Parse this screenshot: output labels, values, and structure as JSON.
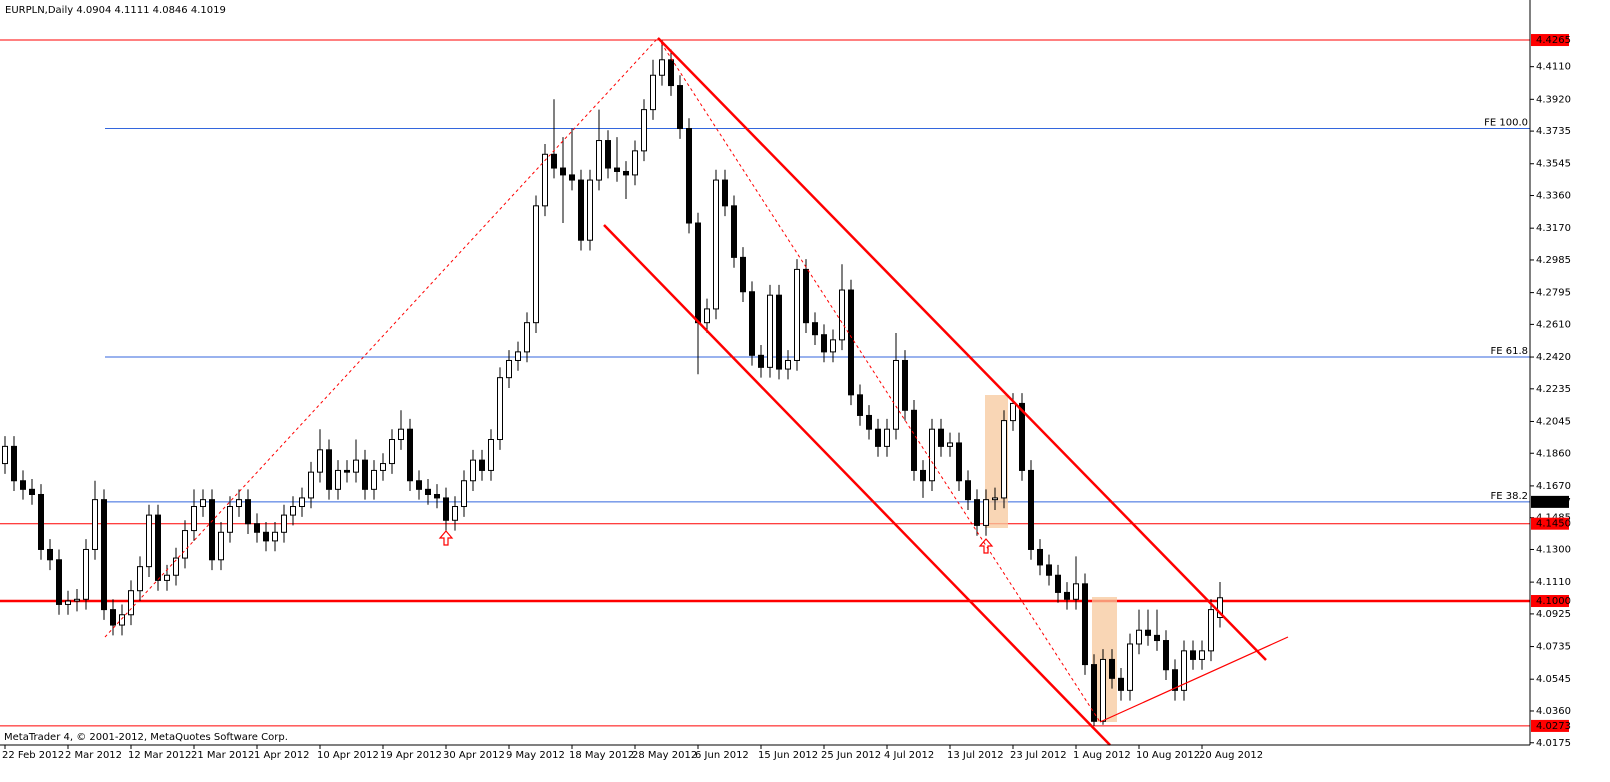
{
  "chart_data": {
    "type": "candlestick",
    "title": "EURPLN,Daily  4.0904 4.1111 4.0846 4.1019",
    "footer": "MetaTrader 4, © 2001-2012, MetaQuotes Software Corp.",
    "bull_color": "#ffffff",
    "bear_color": "#000000",
    "ylim": [
      4.0162,
      4.4498
    ],
    "yticks": [
      {
        "value": 4.411,
        "label": "4.4110"
      },
      {
        "value": 4.392,
        "label": "4.3920"
      },
      4.3735,
      4.3545,
      {
        "value": 4.336,
        "label": "4.3360"
      },
      {
        "value": 4.317,
        "label": "4.3170"
      },
      4.2985,
      4.2795,
      {
        "value": 4.261,
        "label": "4.2610"
      },
      {
        "value": 4.242,
        "label": "4.2420"
      },
      4.2235,
      4.2045,
      {
        "value": 4.186,
        "label": "4.1860"
      },
      {
        "value": 4.167,
        "label": "4.1670"
      },
      4.1485,
      {
        "value": 4.13,
        "label": "4.1300"
      },
      {
        "value": 4.111,
        "label": "4.1110"
      },
      4.0925,
      4.0735,
      4.0545,
      {
        "value": 4.036,
        "label": "4.0360"
      },
      4.0175
    ],
    "price_levels": [
      {
        "value": 4.4265,
        "color": "#ff0000"
      },
      {
        "value": 4.145,
        "label": "4.1450",
        "color": "#ff0000"
      },
      {
        "value": 4.1,
        "label": "4.1000",
        "color": "#ff0000"
      },
      {
        "value": 4.0273,
        "color": "#ff0000"
      }
    ],
    "fe_levels": [
      {
        "name": "FE 100.0",
        "value": 4.375,
        "color": "#3366dd"
      },
      {
        "name": "FE 61.8",
        "value": 4.242,
        "color": "#3366dd"
      },
      {
        "name": "FE 38.2",
        "value": 4.1577,
        "color": "#3366dd",
        "axis_label": true
      }
    ],
    "categories": [
      "22 Feb 2012",
      null,
      null,
      null,
      null,
      null,
      null,
      "2 Mar 2012",
      null,
      null,
      null,
      null,
      null,
      null,
      "12 Mar 2012",
      null,
      null,
      null,
      null,
      null,
      null,
      "21 Mar 2012",
      null,
      null,
      null,
      null,
      null,
      null,
      "1 Apr 2012",
      null,
      null,
      null,
      null,
      null,
      null,
      "10 Apr 2012",
      null,
      null,
      null,
      null,
      null,
      null,
      "19 Apr 2012",
      null,
      null,
      null,
      null,
      null,
      null,
      "30 Apr 2012",
      null,
      null,
      null,
      null,
      null,
      null,
      "9 May 2012",
      null,
      null,
      null,
      null,
      null,
      null,
      "18 May 2012",
      null,
      null,
      null,
      null,
      null,
      null,
      "28 May 2012",
      null,
      null,
      null,
      null,
      null,
      null,
      "6 Jun 2012",
      null,
      null,
      null,
      null,
      null,
      null,
      "15 Jun 2012",
      null,
      null,
      null,
      null,
      null,
      null,
      "25 Jun 2012",
      null,
      null,
      null,
      null,
      null,
      null,
      "4 Jul 2012",
      null,
      null,
      null,
      null,
      null,
      null,
      "13 Jul 2012",
      null,
      null,
      null,
      null,
      null,
      null,
      "23 Jul 2012",
      null,
      null,
      null,
      null,
      null,
      null,
      "1 Aug 2012",
      null,
      null,
      null,
      null,
      null,
      null,
      "10 Aug 2012",
      null,
      null,
      null,
      null,
      null,
      null,
      "20 Aug 2012",
      null,
      null
    ],
    "open": [
      4.18,
      4.19,
      4.17,
      4.165,
      4.162,
      4.13,
      4.124,
      4.098,
      4.1,
      4.101,
      4.13,
      4.159,
      4.095,
      4.086,
      4.092,
      4.106,
      4.12,
      4.15,
      4.112,
      4.115,
      4.125,
      4.141,
      4.155,
      4.159,
      4.124,
      4.14,
      4.155,
      4.159,
      4.145,
      4.14,
      4.135,
      4.14,
      4.15,
      4.155,
      4.16,
      4.175,
      4.188,
      4.165,
      4.176,
      4.175,
      4.182,
      4.165,
      4.176,
      4.18,
      4.194,
      4.2,
      4.17,
      4.165,
      4.162,
      4.16,
      4.147,
      4.155,
      4.17,
      4.182,
      4.176,
      4.194,
      4.23,
      4.24,
      4.245,
      4.262,
      4.33,
      4.36,
      4.352,
      4.348,
      4.345,
      4.31,
      4.345,
      4.368,
      4.352,
      4.35,
      4.348,
      4.362,
      4.386,
      4.406,
      4.415,
      4.4,
      4.375,
      4.32,
      4.262,
      4.27,
      4.345,
      4.33,
      4.3,
      4.28,
      4.243,
      4.236,
      4.278,
      4.235,
      4.24,
      4.293,
      4.262,
      4.255,
      4.245,
      4.252,
      4.281,
      4.22,
      4.208,
      4.2,
      4.19,
      4.2,
      4.24,
      4.211,
      4.176,
      4.17,
      4.2,
      4.19,
      4.192,
      4.17,
      4.159,
      4.144,
      4.159,
      4.16,
      4.205,
      4.215,
      4.176,
      4.13,
      4.121,
      4.115,
      4.105,
      4.101,
      4.11,
      4.063,
      4.03,
      4.066,
      4.055,
      4.048,
      4.075,
      4.083,
      4.08,
      4.077,
      4.06,
      4.048,
      4.071,
      4.066,
      4.071,
      4.0904
    ],
    "high": [
      4.196,
      4.196,
      4.176,
      4.171,
      4.168,
      4.136,
      4.13,
      4.106,
      4.107,
      4.136,
      4.17,
      4.165,
      4.101,
      4.098,
      4.112,
      4.126,
      4.156,
      4.156,
      4.121,
      4.131,
      4.147,
      4.165,
      4.165,
      4.165,
      4.146,
      4.161,
      4.165,
      4.165,
      4.151,
      4.146,
      4.146,
      4.156,
      4.161,
      4.166,
      4.181,
      4.2,
      4.194,
      4.182,
      4.182,
      4.194,
      4.188,
      4.182,
      4.186,
      4.2,
      4.211,
      4.206,
      4.176,
      4.171,
      4.168,
      4.166,
      4.161,
      4.176,
      4.188,
      4.188,
      4.2,
      4.236,
      4.246,
      4.251,
      4.268,
      4.336,
      4.366,
      4.392,
      4.37,
      4.375,
      4.351,
      4.351,
      4.386,
      4.374,
      4.37,
      4.356,
      4.368,
      4.392,
      4.415,
      4.4265,
      4.421,
      4.406,
      4.381,
      4.326,
      4.276,
      4.351,
      4.351,
      4.336,
      4.306,
      4.286,
      4.249,
      4.284,
      4.284,
      4.246,
      4.299,
      4.299,
      4.268,
      4.261,
      4.258,
      4.296,
      4.287,
      4.226,
      4.214,
      4.206,
      4.206,
      4.256,
      4.246,
      4.217,
      4.182,
      4.206,
      4.206,
      4.198,
      4.198,
      4.176,
      4.165,
      4.165,
      4.166,
      4.211,
      4.221,
      4.221,
      4.182,
      4.136,
      4.127,
      4.121,
      4.111,
      4.126,
      4.116,
      4.069,
      4.072,
      4.072,
      4.061,
      4.081,
      4.095,
      4.095,
      4.095,
      4.083,
      4.066,
      4.077,
      4.077,
      4.077,
      4.101,
      4.1111
    ],
    "low": [
      4.174,
      4.164,
      4.159,
      4.156,
      4.124,
      4.118,
      4.092,
      4.092,
      4.094,
      4.095,
      4.124,
      4.089,
      4.08,
      4.08,
      4.086,
      4.1,
      4.114,
      4.106,
      4.106,
      4.109,
      4.119,
      4.135,
      4.149,
      4.118,
      4.118,
      4.134,
      4.149,
      4.139,
      4.134,
      4.129,
      4.129,
      4.134,
      4.144,
      4.149,
      4.154,
      4.169,
      4.159,
      4.159,
      4.169,
      4.169,
      4.159,
      4.159,
      4.17,
      4.174,
      4.188,
      4.164,
      4.159,
      4.156,
      4.154,
      4.141,
      4.141,
      4.149,
      4.164,
      4.17,
      4.17,
      4.188,
      4.224,
      4.234,
      4.239,
      4.256,
      4.324,
      4.346,
      4.32,
      4.339,
      4.304,
      4.304,
      4.339,
      4.346,
      4.344,
      4.334,
      4.342,
      4.356,
      4.38,
      4.4,
      4.394,
      4.369,
      4.314,
      4.232,
      4.256,
      4.264,
      4.324,
      4.294,
      4.274,
      4.237,
      4.23,
      4.23,
      4.229,
      4.229,
      4.234,
      4.256,
      4.249,
      4.239,
      4.239,
      4.246,
      4.214,
      4.202,
      4.194,
      4.184,
      4.184,
      4.194,
      4.205,
      4.17,
      4.16,
      4.164,
      4.184,
      4.184,
      4.164,
      4.153,
      4.138,
      4.138,
      4.153,
      4.154,
      4.199,
      4.17,
      4.124,
      4.115,
      4.109,
      4.099,
      4.095,
      4.095,
      4.057,
      4.0273,
      4.028,
      4.049,
      4.042,
      4.042,
      4.069,
      4.074,
      4.071,
      4.054,
      4.042,
      4.042,
      4.06,
      4.06,
      4.065,
      4.0846
    ],
    "close": [
      4.19,
      4.17,
      4.165,
      4.162,
      4.13,
      4.124,
      4.098,
      4.1,
      4.101,
      4.13,
      4.159,
      4.095,
      4.086,
      4.092,
      4.106,
      4.12,
      4.15,
      4.112,
      4.115,
      4.125,
      4.141,
      4.155,
      4.159,
      4.124,
      4.14,
      4.155,
      4.159,
      4.145,
      4.14,
      4.135,
      4.14,
      4.15,
      4.155,
      4.16,
      4.175,
      4.188,
      4.165,
      4.176,
      4.175,
      4.182,
      4.165,
      4.176,
      4.18,
      4.194,
      4.2,
      4.17,
      4.165,
      4.162,
      4.16,
      4.147,
      4.155,
      4.17,
      4.182,
      4.176,
      4.194,
      4.23,
      4.24,
      4.245,
      4.262,
      4.33,
      4.36,
      4.352,
      4.348,
      4.345,
      4.31,
      4.345,
      4.368,
      4.352,
      4.35,
      4.348,
      4.362,
      4.386,
      4.406,
      4.415,
      4.4,
      4.375,
      4.32,
      4.262,
      4.27,
      4.345,
      4.33,
      4.3,
      4.28,
      4.243,
      4.236,
      4.278,
      4.235,
      4.24,
      4.293,
      4.262,
      4.255,
      4.245,
      4.252,
      4.281,
      4.22,
      4.208,
      4.2,
      4.19,
      4.2,
      4.24,
      4.211,
      4.176,
      4.17,
      4.2,
      4.19,
      4.192,
      4.17,
      4.159,
      4.144,
      4.159,
      4.16,
      4.205,
      4.215,
      4.176,
      4.13,
      4.121,
      4.115,
      4.105,
      4.101,
      4.11,
      4.063,
      4.03,
      4.066,
      4.055,
      4.048,
      4.075,
      4.083,
      4.08,
      4.077,
      4.06,
      4.048,
      4.071,
      4.066,
      4.071,
      4.095,
      4.1019
    ]
  }
}
